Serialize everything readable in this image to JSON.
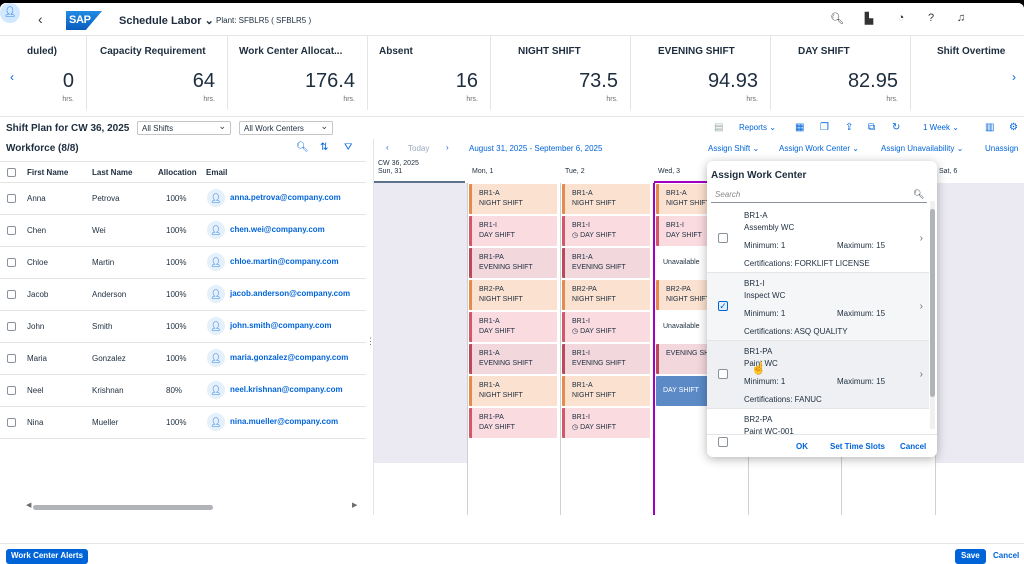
{
  "shell": {
    "title": "Schedule Labor",
    "plant": "Plant: SFBLR5 ( SFBLR5 )",
    "logo": "SAP"
  },
  "kpis": [
    {
      "title": "duled)",
      "value": "0",
      "unit": "hrs."
    },
    {
      "title": "Capacity Requirement",
      "value": "64",
      "unit": "hrs."
    },
    {
      "title": "Work Center Allocat...",
      "value": "176.4",
      "unit": "hrs."
    },
    {
      "title": "Absent",
      "value": "16",
      "unit": "hrs."
    },
    {
      "title": "NIGHT SHIFT",
      "value": "73.5",
      "unit": "hrs."
    },
    {
      "title": "EVENING SHIFT",
      "value": "94.93",
      "unit": "hrs."
    },
    {
      "title": "DAY SHIFT",
      "value": "82.95",
      "unit": "hrs."
    },
    {
      "title": "Shift Overtime",
      "value": "",
      "unit": ""
    }
  ],
  "toolbar": {
    "title": "Shift Plan for CW 36, 2025",
    "shift_filter": "All Shifts",
    "wc_filter": "All Work Centers",
    "reports": "Reports",
    "week": "1 Week"
  },
  "workforce": {
    "title": "Workforce (8/8)",
    "headers": [
      "First Name",
      "Last Name",
      "Allocation",
      "Email"
    ],
    "rows": [
      {
        "first": "Anna",
        "last": "Petrova",
        "alloc": "100%",
        "email": "anna.petrova@company.com"
      },
      {
        "first": "Chen",
        "last": "Wei",
        "alloc": "100%",
        "email": "chen.wei@company.com"
      },
      {
        "first": "Chloe",
        "last": "Martin",
        "alloc": "100%",
        "email": "chloe.martin@company.com"
      },
      {
        "first": "Jacob",
        "last": "Anderson",
        "alloc": "100%",
        "email": "jacob.anderson@company.com"
      },
      {
        "first": "John",
        "last": "Smith",
        "alloc": "100%",
        "email": "john.smith@company.com"
      },
      {
        "first": "Maria",
        "last": "Gonzalez",
        "alloc": "100%",
        "email": "maria.gonzalez@company.com"
      },
      {
        "first": "Neel",
        "last": "Krishnan",
        "alloc": "80%",
        "email": "neel.krishnan@company.com"
      },
      {
        "first": "Nina",
        "last": "Mueller",
        "alloc": "100%",
        "email": "nina.mueller@company.com"
      }
    ]
  },
  "calendar": {
    "today": "Today",
    "range": "August 31, 2025 - September 6, 2025",
    "assign_shift": "Assign Shift",
    "assign_wc": "Assign Work Center",
    "assign_unav": "Assign Unavailability",
    "unassign": "Unassign",
    "cw": "CW 36, 2025",
    "days": [
      "Sun, 31",
      "Mon, 1",
      "Tue, 2",
      "Wed, 3",
      "Sat, 6"
    ],
    "mon": [
      [
        "BR1-A",
        "NIGHT SHIFT",
        "night"
      ],
      [
        "BR1-I",
        "DAY SHIFT",
        "day"
      ],
      [
        "BR1-PA",
        "EVENING SHIFT",
        "eve"
      ],
      [
        "BR2-PA",
        "NIGHT SHIFT",
        "night"
      ],
      [
        "BR1-A",
        "DAY SHIFT",
        "day"
      ],
      [
        "BR1-A",
        "EVENING SHIFT",
        "eve"
      ],
      [
        "BR1-A",
        "NIGHT SHIFT",
        "night"
      ],
      [
        "BR1-PA",
        "DAY SHIFT",
        "day"
      ]
    ],
    "tue": [
      [
        "BR1-A",
        "NIGHT SHIFT",
        "night"
      ],
      [
        "BR1-I",
        "DAY SHIFT",
        "day"
      ],
      [
        "BR1-A",
        "EVENING SHIFT",
        "eve"
      ],
      [
        "BR2-PA",
        "NIGHT SHIFT",
        "night"
      ],
      [
        "BR1-I",
        "DAY SHIFT",
        "day"
      ],
      [
        "BR1-I",
        "EVENING SHIFT",
        "eve"
      ],
      [
        "BR1-A",
        "NIGHT SHIFT",
        "night"
      ],
      [
        "BR1-I",
        "DAY SHIFT",
        "day"
      ]
    ],
    "wed": [
      [
        "BR1-A",
        "NIGHT SHIFT",
        "night"
      ],
      [
        "BR1-I",
        "DAY SHIFT",
        "day"
      ],
      [
        "Unavailable",
        "",
        "unav"
      ],
      [
        "BR2-PA",
        "NIGHT SHIFT",
        "night"
      ],
      [
        "Unavailable",
        "",
        "unav"
      ],
      [
        "EVENING SHIFT",
        "",
        "eve"
      ],
      [
        "DAY SHIFT",
        "",
        "dsel"
      ],
      [
        "",
        "",
        ""
      ]
    ]
  },
  "popover": {
    "title": "Assign Work Center",
    "search_placeholder": "Search",
    "items": [
      {
        "code": "BR1-A",
        "name": "Assembly WC",
        "min": "Minimum:  1",
        "max": "Maximum:  15",
        "cert": "Certifications:  FORKLIFT LICENSE"
      },
      {
        "code": "BR1-I",
        "name": "Inspect WC",
        "min": "Minimum:  1",
        "max": "Maximum:  15",
        "cert": "Certifications:  ASQ QUALITY"
      },
      {
        "code": "BR1-PA",
        "name": "Paint WC",
        "min": "Minimum:  1",
        "max": "Maximum:  15",
        "cert": "Certifications:  FANUC"
      },
      {
        "code": "BR2-PA",
        "name": "Paint WC-001",
        "min": "",
        "max": "",
        "cert": ""
      }
    ],
    "ok": "OK",
    "time_slots": "Set Time Slots",
    "cancel": "Cancel"
  },
  "footer": {
    "alerts": "Work Center Alerts",
    "save": "Save",
    "cancel": "Cancel"
  }
}
